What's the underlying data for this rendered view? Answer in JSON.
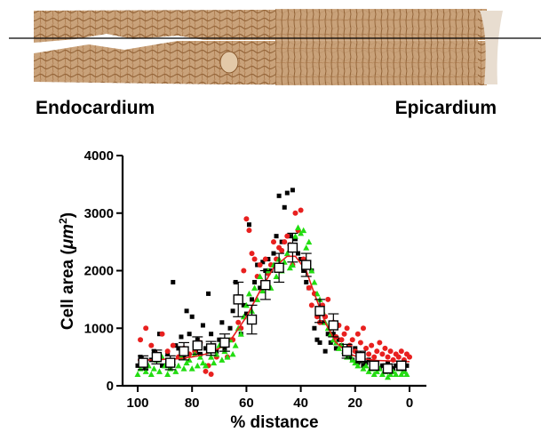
{
  "header": {
    "left_label": "Endocardium",
    "right_label": "Epicardium"
  },
  "colors": {
    "tissue": "#c49a6c",
    "tissue_dark": "#8a5a2e",
    "series_black": "#000000",
    "series_red": "#e8201f",
    "series_green": "#22dd11",
    "fit_line": "#e81c1c"
  },
  "chart_data": {
    "type": "scatter",
    "xlabel": "% distance",
    "ylabel_main": "Cell area (",
    "ylabel_unit": "μm",
    "ylabel_sup": "2",
    "ylabel_end": ")",
    "xlim": [
      100,
      0
    ],
    "ylim": [
      0,
      4000
    ],
    "x_ticks": [
      "100",
      "80",
      "60",
      "40",
      "20",
      "0"
    ],
    "y_ticks": [
      "0",
      "1000",
      "2000",
      "3000",
      "4000"
    ],
    "x_tick_values": [
      100,
      80,
      60,
      40,
      20,
      0
    ],
    "y_tick_values": [
      0,
      1000,
      2000,
      3000,
      4000
    ],
    "series": [
      {
        "marker": "square",
        "color": "#000000",
        "points": [
          [
            100,
            350
          ],
          [
            99,
            500
          ],
          [
            97,
            300
          ],
          [
            95,
            450
          ],
          [
            94,
            600
          ],
          [
            92,
            900
          ],
          [
            91,
            350
          ],
          [
            89,
            550
          ],
          [
            88,
            300
          ],
          [
            87,
            1800
          ],
          [
            86,
            700
          ],
          [
            85,
            650
          ],
          [
            84,
            850
          ],
          [
            83,
            500
          ],
          [
            82,
            1300
          ],
          [
            81,
            900
          ],
          [
            80,
            1200
          ],
          [
            79,
            700
          ],
          [
            78,
            800
          ],
          [
            77,
            550
          ],
          [
            76,
            1050
          ],
          [
            75,
            650
          ],
          [
            74,
            1600
          ],
          [
            73,
            900
          ],
          [
            72,
            700
          ],
          [
            71,
            600
          ],
          [
            70,
            800
          ],
          [
            69,
            1100
          ],
          [
            68,
            650
          ],
          [
            67,
            750
          ],
          [
            66,
            1000
          ],
          [
            65,
            1300
          ],
          [
            64,
            1800
          ],
          [
            63,
            1550
          ],
          [
            62,
            900
          ],
          [
            61,
            1400
          ],
          [
            60,
            1250
          ],
          [
            59,
            2800
          ],
          [
            58,
            1500
          ],
          [
            57,
            1800
          ],
          [
            56,
            2100
          ],
          [
            55,
            1700
          ],
          [
            54,
            2150
          ],
          [
            53,
            2000
          ],
          [
            52,
            2200
          ],
          [
            51,
            2000
          ],
          [
            50,
            2300
          ],
          [
            49,
            2600
          ],
          [
            48,
            3300
          ],
          [
            47,
            2500
          ],
          [
            46,
            3100
          ],
          [
            45,
            3350
          ],
          [
            44,
            2600
          ],
          [
            43,
            3400
          ],
          [
            42,
            2550
          ],
          [
            41,
            2300
          ],
          [
            40,
            2200
          ],
          [
            39,
            2000
          ],
          [
            38,
            1800
          ],
          [
            37,
            1700
          ],
          [
            36,
            2000
          ],
          [
            35,
            1000
          ],
          [
            34,
            800
          ],
          [
            33,
            750
          ],
          [
            32,
            1100
          ],
          [
            31,
            600
          ],
          [
            30,
            900
          ],
          [
            29,
            750
          ],
          [
            28,
            900
          ],
          [
            27,
            650
          ],
          [
            26,
            800
          ],
          [
            25,
            700
          ],
          [
            24,
            550
          ],
          [
            23,
            600
          ],
          [
            22,
            500
          ],
          [
            21,
            450
          ],
          [
            20,
            650
          ],
          [
            19,
            400
          ],
          [
            18,
            500
          ],
          [
            17,
            350
          ],
          [
            16,
            400
          ],
          [
            15,
            450
          ],
          [
            14,
            350
          ],
          [
            13,
            300
          ],
          [
            12,
            400
          ],
          [
            11,
            300
          ],
          [
            10,
            350
          ],
          [
            9,
            280
          ],
          [
            8,
            400
          ],
          [
            7,
            250
          ],
          [
            6,
            300
          ],
          [
            5,
            350
          ],
          [
            4,
            300
          ],
          [
            3,
            400
          ],
          [
            2,
            280
          ],
          [
            1,
            350
          ]
        ]
      },
      {
        "marker": "circle",
        "color": "#e8201f",
        "points": [
          [
            99,
            800
          ],
          [
            97,
            1000
          ],
          [
            95,
            700
          ],
          [
            93,
            550
          ],
          [
            91,
            900
          ],
          [
            89,
            600
          ],
          [
            87,
            700
          ],
          [
            85,
            500
          ],
          [
            83,
            650
          ],
          [
            81,
            550
          ],
          [
            79,
            600
          ],
          [
            77,
            750
          ],
          [
            75,
            250
          ],
          [
            74,
            350
          ],
          [
            73,
            200
          ],
          [
            71,
            500
          ],
          [
            69,
            700
          ],
          [
            67,
            500
          ],
          [
            65,
            800
          ],
          [
            63,
            1100
          ],
          [
            62,
            1000
          ],
          [
            61,
            2000
          ],
          [
            60,
            2900
          ],
          [
            59,
            2700
          ],
          [
            58,
            2300
          ],
          [
            57,
            2200
          ],
          [
            56,
            1900
          ],
          [
            55,
            2100
          ],
          [
            54,
            1800
          ],
          [
            53,
            2200
          ],
          [
            52,
            1950
          ],
          [
            51,
            2100
          ],
          [
            50,
            2500
          ],
          [
            49,
            2200
          ],
          [
            48,
            2400
          ],
          [
            47,
            2350
          ],
          [
            46,
            2500
          ],
          [
            45,
            2600
          ],
          [
            44,
            2450
          ],
          [
            43,
            2100
          ],
          [
            42,
            3000
          ],
          [
            41,
            2700
          ],
          [
            40,
            3050
          ],
          [
            39,
            2200
          ],
          [
            38,
            2100
          ],
          [
            37,
            1700
          ],
          [
            36,
            1400
          ],
          [
            35,
            1600
          ],
          [
            34,
            1200
          ],
          [
            33,
            1100
          ],
          [
            32,
            1400
          ],
          [
            31,
            1200
          ],
          [
            30,
            1500
          ],
          [
            29,
            1000
          ],
          [
            28,
            1100
          ],
          [
            27,
            850
          ],
          [
            26,
            1050
          ],
          [
            25,
            800
          ],
          [
            24,
            900
          ],
          [
            23,
            1000
          ],
          [
            22,
            700
          ],
          [
            21,
            800
          ],
          [
            20,
            600
          ],
          [
            19,
            900
          ],
          [
            18,
            750
          ],
          [
            17,
            1000
          ],
          [
            16,
            650
          ],
          [
            15,
            550
          ],
          [
            14,
            700
          ],
          [
            13,
            500
          ],
          [
            12,
            600
          ],
          [
            11,
            750
          ],
          [
            10,
            550
          ],
          [
            9,
            650
          ],
          [
            8,
            500
          ],
          [
            7,
            600
          ],
          [
            6,
            450
          ],
          [
            5,
            550
          ],
          [
            4,
            500
          ],
          [
            3,
            600
          ],
          [
            2,
            450
          ],
          [
            1,
            550
          ],
          [
            0,
            500
          ]
        ]
      },
      {
        "marker": "triangle",
        "color": "#22dd11",
        "points": [
          [
            100,
            200
          ],
          [
            99,
            300
          ],
          [
            98,
            400
          ],
          [
            97,
            250
          ],
          [
            96,
            350
          ],
          [
            95,
            200
          ],
          [
            94,
            300
          ],
          [
            93,
            450
          ],
          [
            92,
            250
          ],
          [
            91,
            500
          ],
          [
            90,
            350
          ],
          [
            89,
            200
          ],
          [
            88,
            300
          ],
          [
            87,
            400
          ],
          [
            86,
            250
          ],
          [
            85,
            350
          ],
          [
            84,
            500
          ],
          [
            83,
            300
          ],
          [
            82,
            400
          ],
          [
            81,
            450
          ],
          [
            80,
            300
          ],
          [
            79,
            550
          ],
          [
            78,
            350
          ],
          [
            77,
            500
          ],
          [
            76,
            400
          ],
          [
            75,
            350
          ],
          [
            74,
            600
          ],
          [
            73,
            500
          ],
          [
            72,
            400
          ],
          [
            71,
            550
          ],
          [
            70,
            700
          ],
          [
            69,
            450
          ],
          [
            68,
            600
          ],
          [
            67,
            500
          ],
          [
            66,
            800
          ],
          [
            65,
            550
          ],
          [
            64,
            700
          ],
          [
            63,
            1000
          ],
          [
            62,
            900
          ],
          [
            61,
            1200
          ],
          [
            60,
            1400
          ],
          [
            59,
            1600
          ],
          [
            58,
            1300
          ],
          [
            57,
            1700
          ],
          [
            56,
            1500
          ],
          [
            55,
            1900
          ],
          [
            54,
            1650
          ],
          [
            53,
            1800
          ],
          [
            52,
            2000
          ],
          [
            51,
            1700
          ],
          [
            50,
            2100
          ],
          [
            49,
            1900
          ],
          [
            48,
            2200
          ],
          [
            47,
            2000
          ],
          [
            46,
            2150
          ],
          [
            45,
            2300
          ],
          [
            44,
            2050
          ],
          [
            43,
            2100
          ],
          [
            42,
            2600
          ],
          [
            41,
            2750
          ],
          [
            40,
            2650
          ],
          [
            39,
            2700
          ],
          [
            38,
            2400
          ],
          [
            37,
            2500
          ],
          [
            36,
            2000
          ],
          [
            35,
            1800
          ],
          [
            34,
            1600
          ],
          [
            33,
            1500
          ],
          [
            32,
            1300
          ],
          [
            31,
            1100
          ],
          [
            30,
            1000
          ],
          [
            29,
            900
          ],
          [
            28,
            800
          ],
          [
            27,
            750
          ],
          [
            26,
            650
          ],
          [
            25,
            700
          ],
          [
            24,
            600
          ],
          [
            23,
            500
          ],
          [
            22,
            550
          ],
          [
            21,
            450
          ],
          [
            20,
            400
          ],
          [
            19,
            350
          ],
          [
            18,
            450
          ],
          [
            17,
            300
          ],
          [
            16,
            350
          ],
          [
            15,
            250
          ],
          [
            14,
            300
          ],
          [
            13,
            200
          ],
          [
            12,
            250
          ],
          [
            11,
            300
          ],
          [
            10,
            200
          ],
          [
            9,
            250
          ],
          [
            8,
            150
          ],
          [
            7,
            200
          ],
          [
            6,
            250
          ],
          [
            5,
            200
          ],
          [
            4,
            300
          ],
          [
            3,
            200
          ],
          [
            2,
            250
          ],
          [
            1,
            200
          ]
        ]
      }
    ],
    "mean_points": [
      {
        "x": 98,
        "y": 400,
        "err": 120
      },
      {
        "x": 93,
        "y": 500,
        "err": 120
      },
      {
        "x": 88,
        "y": 400,
        "err": 120
      },
      {
        "x": 83,
        "y": 600,
        "err": 150
      },
      {
        "x": 78,
        "y": 700,
        "err": 150
      },
      {
        "x": 73,
        "y": 650,
        "err": 120
      },
      {
        "x": 68,
        "y": 750,
        "err": 150
      },
      {
        "x": 63,
        "y": 1500,
        "err": 300
      },
      {
        "x": 58,
        "y": 1150,
        "err": 250
      },
      {
        "x": 53,
        "y": 1750,
        "err": 250
      },
      {
        "x": 48,
        "y": 2050,
        "err": 250
      },
      {
        "x": 43,
        "y": 2400,
        "err": 250
      },
      {
        "x": 38,
        "y": 2100,
        "err": 200
      },
      {
        "x": 33,
        "y": 1300,
        "err": 200
      },
      {
        "x": 28,
        "y": 1050,
        "err": 200
      },
      {
        "x": 23,
        "y": 600,
        "err": 120
      },
      {
        "x": 18,
        "y": 500,
        "err": 100
      },
      {
        "x": 13,
        "y": 350,
        "err": 80
      },
      {
        "x": 8,
        "y": 300,
        "err": 80
      },
      {
        "x": 3,
        "y": 350,
        "err": 80
      }
    ],
    "fit_curve": [
      [
        100,
        450
      ],
      [
        95,
        450
      ],
      [
        90,
        460
      ],
      [
        85,
        470
      ],
      [
        80,
        500
      ],
      [
        75,
        550
      ],
      [
        70,
        650
      ],
      [
        65,
        850
      ],
      [
        60,
        1200
      ],
      [
        55,
        1650
      ],
      [
        50,
        2050
      ],
      [
        45,
        2250
      ],
      [
        42,
        2250
      ],
      [
        38,
        2000
      ],
      [
        35,
        1600
      ],
      [
        31,
        1100
      ],
      [
        27,
        750
      ],
      [
        22,
        550
      ],
      [
        17,
        470
      ],
      [
        12,
        440
      ],
      [
        6,
        430
      ],
      [
        0,
        420
      ]
    ]
  }
}
